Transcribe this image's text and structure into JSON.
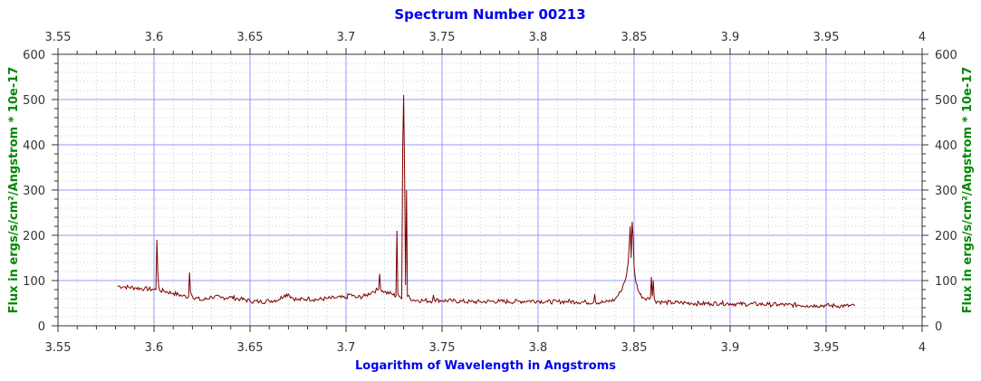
{
  "chart_data": {
    "type": "line",
    "title": "Spectrum Number 00213",
    "xlabel": "Logarithm of Wavelength in Angstroms",
    "ylabel": "Flux in ergs/s/cm²/Angstrom * 10e-17",
    "xlim": [
      3.55,
      4.0
    ],
    "ylim": [
      0,
      600
    ],
    "x_ticks": [
      "3.55",
      "3.6",
      "3.65",
      "3.7",
      "3.75",
      "3.8",
      "3.85",
      "3.9",
      "3.95",
      "4"
    ],
    "y_ticks": [
      "0",
      "100",
      "200",
      "300",
      "400",
      "500",
      "600"
    ],
    "grid": true,
    "mirrored_axes": true,
    "colors": {
      "line": "#7a0000",
      "major_grid": "#9999ff",
      "minor_grid": "#cccccc",
      "title": "#0000ee",
      "ylabel": "#008800"
    },
    "series": [
      {
        "x": [
          3.581,
          3.585,
          3.59,
          3.595,
          3.6,
          3.601,
          3.6015,
          3.602,
          3.6025,
          3.603,
          3.605,
          3.61,
          3.615,
          3.618,
          3.6185,
          3.619,
          3.62,
          3.625,
          3.63,
          3.635,
          3.64,
          3.645,
          3.65,
          3.655,
          3.66,
          3.665,
          3.668,
          3.67,
          3.672,
          3.675,
          3.68,
          3.685,
          3.69,
          3.695,
          3.7,
          3.702,
          3.705,
          3.71,
          3.714,
          3.717,
          3.7175,
          3.718,
          3.72,
          3.724,
          3.726,
          3.7265,
          3.727,
          3.728,
          3.729,
          3.7295,
          3.73,
          3.7305,
          3.731,
          3.7315,
          3.732,
          3.735,
          3.74,
          3.745,
          3.7455,
          3.746,
          3.75,
          3.755,
          3.76,
          3.765,
          3.77,
          3.775,
          3.78,
          3.785,
          3.79,
          3.795,
          3.8,
          3.805,
          3.81,
          3.815,
          3.82,
          3.825,
          3.829,
          3.8295,
          3.83,
          3.835,
          3.84,
          3.843,
          3.846,
          3.847,
          3.848,
          3.8485,
          3.849,
          3.8495,
          3.85,
          3.851,
          3.853,
          3.855,
          3.8585,
          3.859,
          3.8595,
          3.86,
          3.8605,
          3.861,
          3.865,
          3.87,
          3.875,
          3.88,
          3.885,
          3.89,
          3.895,
          3.9,
          3.905,
          3.91,
          3.915,
          3.92,
          3.925,
          3.93,
          3.935,
          3.94,
          3.945,
          3.95,
          3.955,
          3.96,
          3.965
        ],
        "y": [
          88,
          86,
          84,
          82,
          80,
          80,
          190,
          120,
          85,
          78,
          77,
          72,
          66,
          64,
          118,
          75,
          65,
          56,
          64,
          62,
          63,
          59,
          55,
          53,
          55,
          58,
          68,
          70,
          62,
          57,
          60,
          58,
          60,
          62,
          62,
          70,
          62,
          66,
          76,
          80,
          115,
          82,
          75,
          70,
          66,
          210,
          70,
          65,
          60,
          380,
          510,
          330,
          90,
          300,
          65,
          57,
          56,
          55,
          68,
          57,
          56,
          55,
          54,
          53,
          53,
          54,
          54,
          53,
          54,
          55,
          55,
          53,
          53,
          54,
          53,
          52,
          52,
          70,
          52,
          52,
          58,
          75,
          110,
          140,
          220,
          150,
          230,
          200,
          130,
          95,
          70,
          62,
          60,
          108,
          65,
          100,
          60,
          55,
          52,
          51,
          51,
          50,
          49,
          49,
          50,
          49,
          48,
          48,
          48,
          47,
          47,
          46,
          46,
          45,
          45,
          45,
          44,
          44,
          44
        ]
      }
    ]
  }
}
